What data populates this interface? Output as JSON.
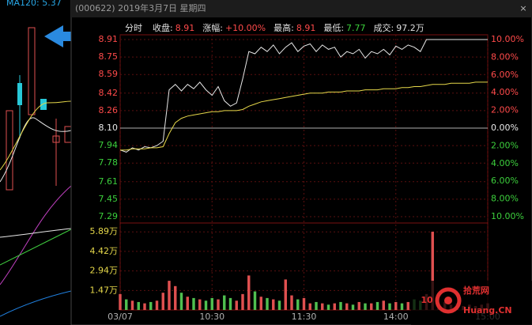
{
  "header": {
    "title": "(000622) 2019年3月7日 星期四",
    "close": "×"
  },
  "left_panel": {
    "ma_label": "MA120: 5.37"
  },
  "watermark": {
    "number": "10",
    "name": "拾荒网",
    "site": "Huang.CN"
  },
  "chart_data": [
    {
      "type": "line",
      "info": [
        {
          "label": "分时"
        },
        {
          "label": "收盘:",
          "value": "8.91"
        },
        {
          "label": "涨幅:",
          "value": "+10.00%"
        },
        {
          "label": "最高:",
          "value": "8.91"
        },
        {
          "label": "最低:",
          "value": "7.77"
        },
        {
          "label": "成交:",
          "value": "97.2万"
        }
      ],
      "x": [
        0,
        4,
        8,
        12,
        16,
        20,
        24,
        28,
        32,
        36,
        40,
        44,
        48,
        52,
        56,
        60,
        64,
        68,
        72,
        76,
        80,
        84,
        88,
        92,
        96,
        100,
        104,
        108,
        112,
        116,
        120,
        124,
        128,
        132,
        136,
        140,
        144,
        148,
        152,
        156,
        160,
        164,
        168,
        172,
        176,
        180,
        184,
        188,
        192,
        196,
        200,
        204,
        208,
        212,
        216,
        220,
        224,
        228,
        232,
        236,
        240
      ],
      "series": [
        {
          "color": "#e8e8e8",
          "values": [
            7.9,
            7.88,
            7.92,
            7.9,
            7.93,
            7.92,
            7.94,
            7.98,
            8.45,
            8.5,
            8.44,
            8.5,
            8.46,
            8.52,
            8.45,
            8.4,
            8.48,
            8.35,
            8.3,
            8.33,
            8.55,
            8.8,
            8.78,
            8.84,
            8.8,
            8.86,
            8.78,
            8.84,
            8.88,
            8.8,
            8.85,
            8.87,
            8.8,
            8.86,
            8.82,
            8.84,
            8.75,
            8.8,
            8.78,
            8.82,
            8.74,
            8.8,
            8.78,
            8.82,
            8.77,
            8.85,
            8.82,
            8.86,
            8.84,
            8.8,
            8.91,
            8.91,
            8.91,
            8.91,
            8.91,
            8.91,
            8.91,
            8.91,
            8.91,
            8.91,
            8.91
          ]
        },
        {
          "color": "#e6d84a",
          "values": [
            7.9,
            7.9,
            7.91,
            7.91,
            7.91,
            7.92,
            7.92,
            7.93,
            8.05,
            8.15,
            8.19,
            8.21,
            8.22,
            8.23,
            8.24,
            8.25,
            8.25,
            8.26,
            8.26,
            8.26,
            8.27,
            8.3,
            8.32,
            8.34,
            8.35,
            8.36,
            8.37,
            8.38,
            8.39,
            8.4,
            8.41,
            8.42,
            8.42,
            8.42,
            8.43,
            8.43,
            8.43,
            8.44,
            8.44,
            8.44,
            8.45,
            8.45,
            8.45,
            8.46,
            8.46,
            8.46,
            8.47,
            8.47,
            8.48,
            8.48,
            8.49,
            8.5,
            8.5,
            8.5,
            8.51,
            8.51,
            8.51,
            8.51,
            8.52,
            8.52,
            8.52
          ]
        }
      ],
      "xlim": [
        0,
        240
      ],
      "xticks": [
        {
          "value": 0,
          "label": "03/07"
        },
        {
          "value": 60,
          "label": "10:30"
        },
        {
          "value": 120,
          "label": "11:30"
        },
        {
          "value": 180,
          "label": "14:00"
        },
        {
          "value": 240,
          "label": "15:00"
        }
      ],
      "ylim": [
        7.29,
        8.91
      ],
      "yticks": [
        {
          "value": 8.91,
          "label": "8.91"
        },
        8.75,
        8.59,
        8.42,
        8.26,
        {
          "value": 8.1,
          "label": "8.10"
        },
        7.94,
        7.78,
        7.61,
        7.45,
        7.29
      ],
      "y2lim": [
        -10,
        10
      ],
      "y2ticks": [
        {
          "value": 10,
          "label": "10.00%"
        },
        {
          "value": 8,
          "label": "8.00%"
        },
        {
          "value": 6,
          "label": "6.00%"
        },
        {
          "value": 4,
          "label": "4.00%"
        },
        {
          "value": 2,
          "label": "2.00%"
        },
        {
          "value": 0,
          "label": "0.00%"
        },
        {
          "value": -2,
          "label": "2.00%"
        },
        {
          "value": -4,
          "label": "4.00%"
        },
        {
          "value": -6,
          "label": "6.00%"
        },
        {
          "value": -8,
          "label": "8.00%"
        },
        {
          "value": -10,
          "label": "10.00%"
        }
      ],
      "up_color": "#ff4a4a",
      "flat_color": "#e8e8e8",
      "down_color": "#3ccf3c",
      "grid": true
    },
    {
      "type": "bar",
      "x": [
        0,
        4,
        8,
        12,
        16,
        20,
        24,
        28,
        32,
        36,
        40,
        44,
        48,
        52,
        56,
        60,
        64,
        68,
        72,
        76,
        80,
        84,
        88,
        92,
        96,
        100,
        104,
        108,
        112,
        116,
        120,
        124,
        128,
        132,
        136,
        140,
        144,
        148,
        152,
        156,
        160,
        164,
        168,
        172,
        176,
        180,
        184,
        188,
        192,
        196,
        200,
        204,
        208,
        212,
        216,
        220,
        224,
        228,
        232,
        236,
        240
      ],
      "values": [
        1.2,
        0.8,
        0.7,
        0.6,
        0.5,
        0.6,
        0.7,
        1.3,
        2.2,
        1.8,
        1.3,
        1.0,
        0.9,
        0.8,
        0.7,
        0.9,
        0.8,
        1.1,
        0.9,
        0.7,
        1.2,
        2.6,
        1.4,
        1.0,
        0.9,
        0.8,
        0.7,
        2.3,
        1.1,
        0.8,
        0.9,
        0.5,
        0.6,
        0.5,
        0.4,
        0.5,
        0.6,
        0.5,
        0.4,
        0.6,
        0.5,
        0.5,
        0.6,
        0.7,
        0.5,
        0.6,
        0.5,
        0.6,
        0.8,
        0.7,
        1.2,
        5.9,
        0.5,
        0.6,
        0.4,
        0.5,
        0.3,
        0.4,
        0.3,
        0.4,
        0.5
      ],
      "up_color": "#e05050",
      "down_color": "#50c050",
      "xlim": [
        0,
        240
      ],
      "ylim": [
        0,
        6.2
      ],
      "yticks": [
        {
          "value": 5.89,
          "label": "5.89万"
        },
        {
          "value": 4.42,
          "label": "4.42万"
        },
        {
          "value": 2.94,
          "label": "2.94万"
        },
        {
          "value": 1.47,
          "label": "1.47万"
        }
      ],
      "tick_color": "#e6d84a",
      "grid": true
    }
  ]
}
